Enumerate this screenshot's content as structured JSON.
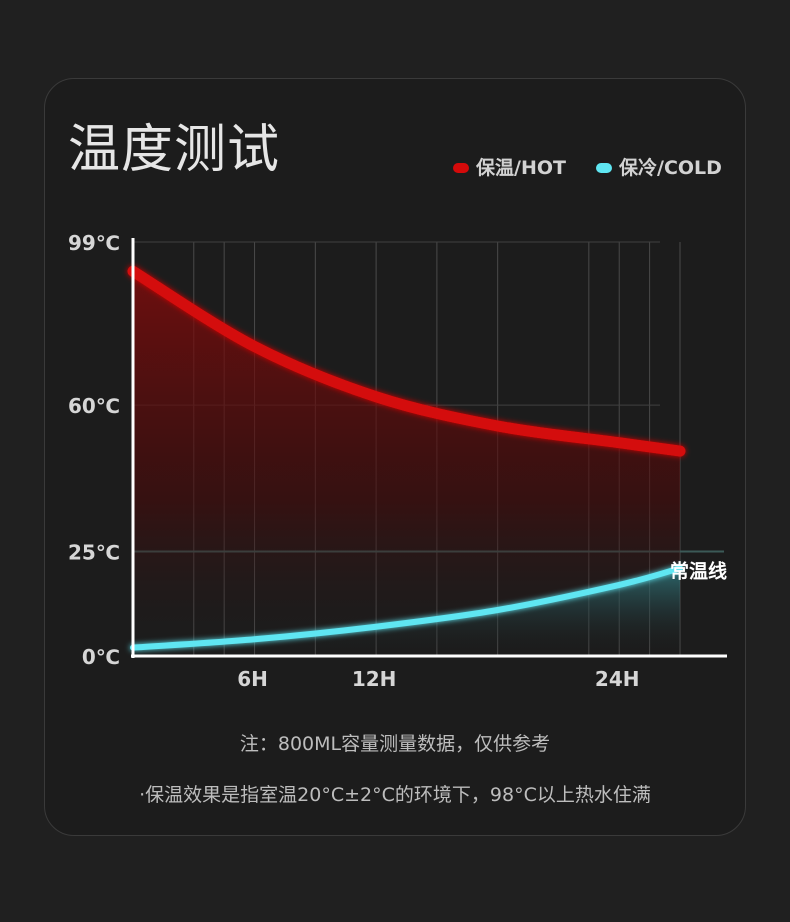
{
  "page": {
    "title": "温度测试",
    "note_line1": "注：800ML容量测量数据，仅供参考",
    "note_line2": "·保温效果是指室温20°C±2°C的环境下，98°C以上热水住满"
  },
  "colors": {
    "hot": "#d40a0a",
    "cold": "#5fe6f2",
    "background": "#1c1c1c",
    "reference_line": "#3b5a57"
  },
  "chart_data": {
    "type": "area",
    "title": "温度测试",
    "x_tick_labels": [
      "6H",
      "12H",
      "24H"
    ],
    "y_tick_labels": [
      "0℃",
      "25℃",
      "60℃",
      "99℃"
    ],
    "y_ticks": [
      0,
      25,
      60,
      99
    ],
    "ylim": [
      0,
      99
    ],
    "grid": true,
    "legend_position": "top-right",
    "reference_line": {
      "value": 25,
      "label": "常温线"
    },
    "series": [
      {
        "name": "保温/HOT",
        "color_key": "hot",
        "values": [
          {
            "x": 0,
            "y": 92
          },
          {
            "x": 6,
            "y": 74
          },
          {
            "x": 12,
            "y": 62
          },
          {
            "x": 18,
            "y": 55
          },
          {
            "x": 24,
            "y": 51
          },
          {
            "x": 27,
            "y": 49
          }
        ]
      },
      {
        "name": "保冷/COLD",
        "color_key": "cold",
        "values": [
          {
            "x": 0,
            "y": 2
          },
          {
            "x": 6,
            "y": 4
          },
          {
            "x": 12,
            "y": 7
          },
          {
            "x": 18,
            "y": 11
          },
          {
            "x": 24,
            "y": 17
          },
          {
            "x": 27,
            "y": 21
          }
        ]
      }
    ]
  }
}
